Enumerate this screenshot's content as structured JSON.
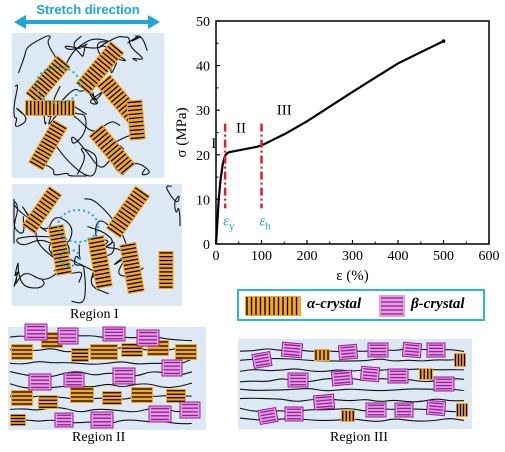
{
  "top_label": "Stretch direction",
  "regions": {
    "r1": "Region I",
    "r2": "Region II",
    "r3": "Region III"
  },
  "legend": {
    "alpha": "α-crystal",
    "beta": "β-crystal"
  },
  "colors": {
    "alpha_fill": "#f5a623",
    "beta_fill": "#e0a0e0",
    "beta_stroke": "#9a1a9a",
    "panel_bg": "#dce9f5",
    "accent_cyan": "#1aa7dc",
    "red_marker": "#e02020"
  },
  "chart_data": {
    "type": "line",
    "xlabel": "ε (%)",
    "ylabel": "σ (MPa)",
    "xlim": [
      0,
      600
    ],
    "ylim": [
      0,
      50
    ],
    "xticks": [
      "0",
      "100",
      "200",
      "300",
      "400",
      "500",
      "600"
    ],
    "yticks": [
      "0",
      "10",
      "20",
      "30",
      "40",
      "50"
    ],
    "series": [
      {
        "x": [
          0,
          3,
          6,
          10,
          15,
          20,
          25,
          30,
          40,
          50,
          60,
          70,
          80,
          90,
          100,
          110,
          130,
          150,
          200,
          250,
          300,
          350,
          400,
          450,
          500
        ],
        "y": [
          0,
          5,
          10,
          14.5,
          18,
          19.8,
          20.4,
          20.6,
          20.8,
          21.0,
          21.2,
          21.4,
          21.6,
          21.8,
          22.1,
          22.6,
          23.6,
          24.6,
          27.5,
          30.8,
          34.1,
          37.3,
          40.5,
          43.0,
          45.5
        ]
      }
    ],
    "region_labels": [
      "I",
      "II",
      "III"
    ],
    "markers": [
      {
        "x": 20,
        "label": "ε",
        "subscript": "y"
      },
      {
        "x": 100,
        "label": "ε",
        "subscript": "h"
      }
    ],
    "grid": false
  }
}
